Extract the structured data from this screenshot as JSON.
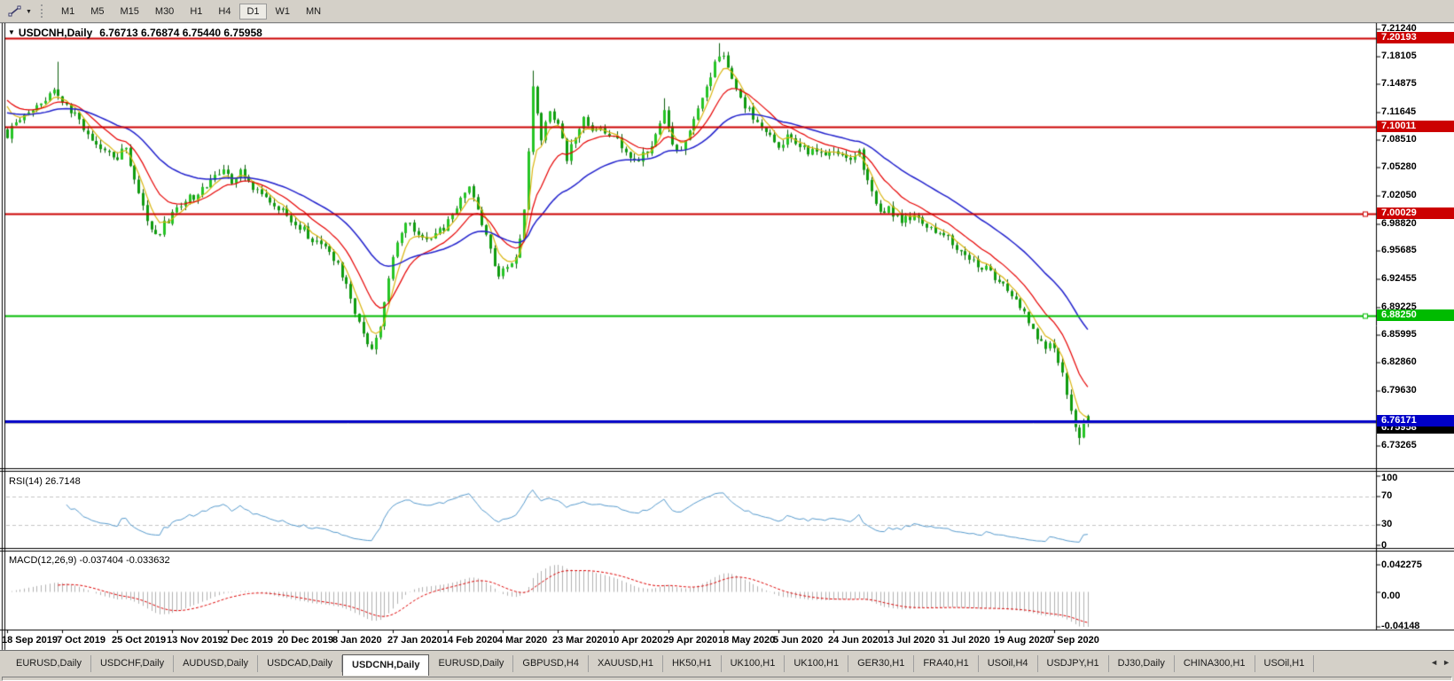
{
  "icons": {
    "tool_dropdown": "▼",
    "title_marker": "▼",
    "tab_scroll_left": "◄",
    "tab_scroll_right": "►"
  },
  "toolbar": {
    "timeframes": [
      {
        "label": "M1",
        "active": false
      },
      {
        "label": "M5",
        "active": false
      },
      {
        "label": "M15",
        "active": false
      },
      {
        "label": "M30",
        "active": false
      },
      {
        "label": "H1",
        "active": false
      },
      {
        "label": "H4",
        "active": false
      },
      {
        "label": "D1",
        "active": true
      },
      {
        "label": "W1",
        "active": false
      },
      {
        "label": "MN",
        "active": false
      }
    ]
  },
  "chart": {
    "symbol_title": "USDCNH,Daily",
    "ohlc_text": "6.76713 6.76874 6.75440 6.75958"
  },
  "chart_data": {
    "type": "candlestick",
    "symbol": "USDCNH",
    "timeframe": "Daily",
    "last_bar": {
      "open": 6.76713,
      "high": 6.76874,
      "low": 6.7544,
      "close": 6.75958
    },
    "bars_total": 256,
    "x_tick_interval_bars": 13,
    "x_tick_labels": [
      "18 Sep 2019",
      "7 Oct 2019",
      "25 Oct 2019",
      "13 Nov 2019",
      "2 Dec 2019",
      "20 Dec 2019",
      "8 Jan 2020",
      "27 Jan 2020",
      "14 Feb 2020",
      "4 Mar 2020",
      "23 Mar 2020",
      "10 Apr 2020",
      "29 Apr 2020",
      "18 May 2020",
      "5 Jun 2020",
      "24 Jun 2020",
      "13 Jul 2020",
      "31 Jul 2020",
      "19 Aug 2020",
      "7 Sep 2020"
    ],
    "y_range": {
      "min": 6.73265,
      "max": 7.2124
    },
    "y_ticks": [
      "7.21240",
      "7.18105",
      "7.14875",
      "7.11645",
      "7.08510",
      "7.05280",
      "7.02050",
      "6.98820",
      "6.95685",
      "6.92455",
      "6.89225",
      "6.85995",
      "6.82860",
      "6.79630",
      "6.73265"
    ],
    "levels": [
      {
        "price": 7.20193,
        "label": "7.20193",
        "color": "#cc0000",
        "width": 2,
        "handle": false
      },
      {
        "price": 7.10011,
        "label": "7.10011",
        "color": "#cc0000",
        "width": 2,
        "handle": false
      },
      {
        "price": 7.00029,
        "label": "7.00029",
        "color": "#cc0000",
        "width": 2,
        "handle": true
      },
      {
        "price": 6.8825,
        "label": "6.88250",
        "color": "#00bb00",
        "width": 2,
        "handle": true
      },
      {
        "price": 6.76171,
        "label": "6.76171",
        "color": "#0000c8",
        "width": 3,
        "handle": false
      }
    ],
    "hidden_close_label": "6.75958",
    "bid_line": {
      "price": 6.759,
      "color": "#b8b8b8"
    },
    "candle_colors": {
      "bull": "#25c525",
      "bear": "#0f9c0f",
      "outline": "#0b5d0b"
    },
    "close_anchors": [
      [
        0,
        7.09
      ],
      [
        2,
        7.105
      ],
      [
        5,
        7.118
      ],
      [
        8,
        7.128
      ],
      [
        11,
        7.145
      ],
      [
        13,
        7.13
      ],
      [
        16,
        7.112
      ],
      [
        19,
        7.088
      ],
      [
        22,
        7.075
      ],
      [
        26,
        7.063
      ],
      [
        28,
        7.078
      ],
      [
        30,
        7.042
      ],
      [
        33,
        6.992
      ],
      [
        35,
        6.972
      ],
      [
        37,
        6.988
      ],
      [
        39,
        7.0
      ],
      [
        42,
        7.014
      ],
      [
        46,
        7.028
      ],
      [
        49,
        7.042
      ],
      [
        51,
        7.052
      ],
      [
        53,
        7.038
      ],
      [
        55,
        7.046
      ],
      [
        58,
        7.032
      ],
      [
        62,
        7.016
      ],
      [
        65,
        7.002
      ],
      [
        68,
        6.99
      ],
      [
        71,
        6.976
      ],
      [
        74,
        6.963
      ],
      [
        78,
        6.944
      ],
      [
        80,
        6.918
      ],
      [
        82,
        6.885
      ],
      [
        84,
        6.862
      ],
      [
        86,
        6.846
      ],
      [
        88,
        6.872
      ],
      [
        90,
        6.928
      ],
      [
        92,
        6.966
      ],
      [
        94,
        6.988
      ],
      [
        97,
        6.979
      ],
      [
        100,
        6.972
      ],
      [
        104,
        6.99
      ],
      [
        107,
        7.014
      ],
      [
        109,
        7.036
      ],
      [
        111,
        7.002
      ],
      [
        114,
        6.956
      ],
      [
        116,
        6.932
      ],
      [
        118,
        6.938
      ],
      [
        120,
        6.952
      ],
      [
        122,
        7.0
      ],
      [
        123,
        7.07
      ],
      [
        124,
        7.148
      ],
      [
        126,
        7.085
      ],
      [
        128,
        7.118
      ],
      [
        130,
        7.108
      ],
      [
        132,
        7.062
      ],
      [
        134,
        7.09
      ],
      [
        136,
        7.115
      ],
      [
        138,
        7.092
      ],
      [
        140,
        7.1
      ],
      [
        143,
        7.088
      ],
      [
        146,
        7.072
      ],
      [
        149,
        7.062
      ],
      [
        152,
        7.078
      ],
      [
        155,
        7.115
      ],
      [
        157,
        7.082
      ],
      [
        159,
        7.072
      ],
      [
        161,
        7.092
      ],
      [
        163,
        7.118
      ],
      [
        166,
        7.158
      ],
      [
        168,
        7.185
      ],
      [
        170,
        7.172
      ],
      [
        172,
        7.142
      ],
      [
        175,
        7.118
      ],
      [
        178,
        7.096
      ],
      [
        182,
        7.08
      ],
      [
        185,
        7.09
      ],
      [
        188,
        7.074
      ],
      [
        191,
        7.068
      ],
      [
        195,
        7.076
      ],
      [
        198,
        7.064
      ],
      [
        201,
        7.07
      ],
      [
        204,
        7.022
      ],
      [
        206,
        7.002
      ],
      [
        208,
        7.006
      ],
      [
        211,
        6.99
      ],
      [
        214,
        7.0
      ],
      [
        217,
        6.986
      ],
      [
        221,
        6.976
      ],
      [
        224,
        6.96
      ],
      [
        227,
        6.95
      ],
      [
        230,
        6.94
      ],
      [
        234,
        6.924
      ],
      [
        237,
        6.91
      ],
      [
        240,
        6.888
      ],
      [
        242,
        6.868
      ],
      [
        244,
        6.852
      ],
      [
        247,
        6.844
      ],
      [
        249,
        6.818
      ],
      [
        250,
        6.796
      ],
      [
        251,
        6.776
      ],
      [
        252,
        6.752
      ],
      [
        253,
        6.746
      ],
      [
        254,
        6.758
      ],
      [
        255,
        6.75958
      ]
    ],
    "forced_wicks": [
      {
        "bar": 12,
        "high": 7.175
      },
      {
        "bar": 124,
        "high": 7.1648
      },
      {
        "bar": 155,
        "high": 7.133
      },
      {
        "bar": 168,
        "high": 7.1964
      },
      {
        "bar": 253,
        "low": 6.734
      }
    ],
    "moving_averages": [
      {
        "period": 5,
        "type": "ema",
        "color": "#d9b50f",
        "seed": 7.142,
        "width": 1.2
      },
      {
        "period": 13,
        "type": "ema",
        "color": "#e60000",
        "seed": 7.138,
        "width": 1.2
      },
      {
        "period": 34,
        "type": "ema",
        "color": "#2020cc",
        "seed": 7.118,
        "width": 1.5
      }
    ],
    "rsi": {
      "label": "RSI(14) 26.7148",
      "period": 14,
      "value": 26.7148,
      "color": "#5599cc",
      "ticks": [
        "100",
        "70",
        "30",
        "0"
      ],
      "guide_levels": [
        70,
        30
      ]
    },
    "macd": {
      "label": "MACD(12,26,9) -0.037404 -0.033632",
      "fast": 12,
      "slow": 26,
      "signal": 9,
      "value": -0.037404,
      "signal_value": -0.033632,
      "hist_color": "#b0b0b0",
      "signal_color": "#dd0000",
      "ticks": [
        "0.042275",
        "0.00",
        "-0.04148"
      ]
    }
  },
  "tabs": {
    "items": [
      {
        "label": "EURUSD,Daily",
        "active": false
      },
      {
        "label": "USDCHF,Daily",
        "active": false
      },
      {
        "label": "AUDUSD,Daily",
        "active": false
      },
      {
        "label": "USDCAD,Daily",
        "active": false
      },
      {
        "label": "USDCNH,Daily",
        "active": true
      },
      {
        "label": "EURUSD,Daily",
        "active": false
      },
      {
        "label": "GBPUSD,H4",
        "active": false
      },
      {
        "label": "XAUUSD,H1",
        "active": false
      },
      {
        "label": "HK50,H1",
        "active": false
      },
      {
        "label": "UK100,H1",
        "active": false
      },
      {
        "label": "UK100,H1",
        "active": false
      },
      {
        "label": "GER30,H1",
        "active": false
      },
      {
        "label": "FRA40,H1",
        "active": false
      },
      {
        "label": "USOil,H4",
        "active": false
      },
      {
        "label": "USDJPY,H1",
        "active": false
      },
      {
        "label": "DJ30,Daily",
        "active": false
      },
      {
        "label": "CHINA300,H1",
        "active": false
      },
      {
        "label": "USOil,H1",
        "active": false
      }
    ]
  }
}
